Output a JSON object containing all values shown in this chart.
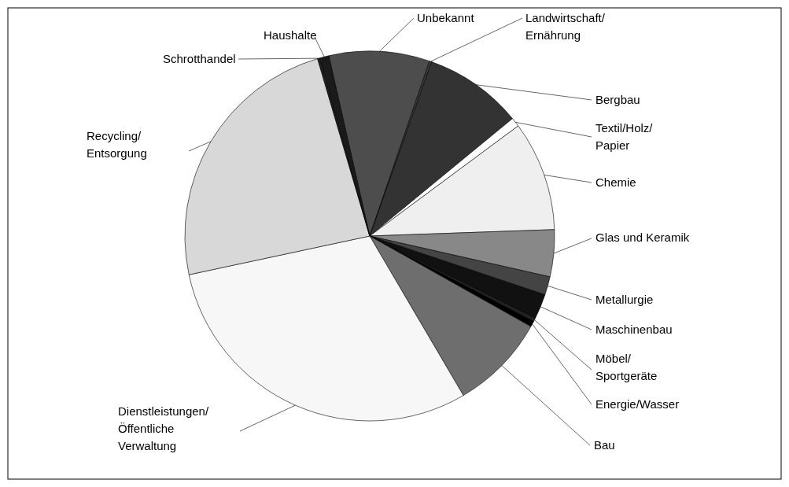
{
  "chart_data": {
    "type": "pie",
    "categories": [
      "Unbekannt",
      "Landwirtschaft/Ernährung",
      "Bergbau",
      "Textil/Holz/Papier",
      "Chemie",
      "Glas und Keramik",
      "Metallurgie",
      "Maschinenbau",
      "Möbel/Sportgeräte",
      "Energie/Wasser",
      "Bau",
      "Dienstleistungen/Öffentliche Verwaltung",
      "Recycling/Entsorgung",
      "Schrotthandel",
      "Haushalte"
    ],
    "values": [
      8.8,
      0.2,
      8.6,
      0.8,
      9.6,
      4.1,
      1.6,
      2.2,
      0.3,
      0.5,
      8.4,
      30.1,
      23.8,
      0.2,
      0.8
    ],
    "colors": [
      "#4d4d4d",
      "#3a3a3a",
      "#333333",
      "#ffffff",
      "#efefef",
      "#888888",
      "#444444",
      "#111111",
      "#222222",
      "#000000",
      "#6e6e6e",
      "#f7f7f7",
      "#d8d8d8",
      "#222222",
      "#1a1a1a"
    ],
    "legend": false
  }
}
